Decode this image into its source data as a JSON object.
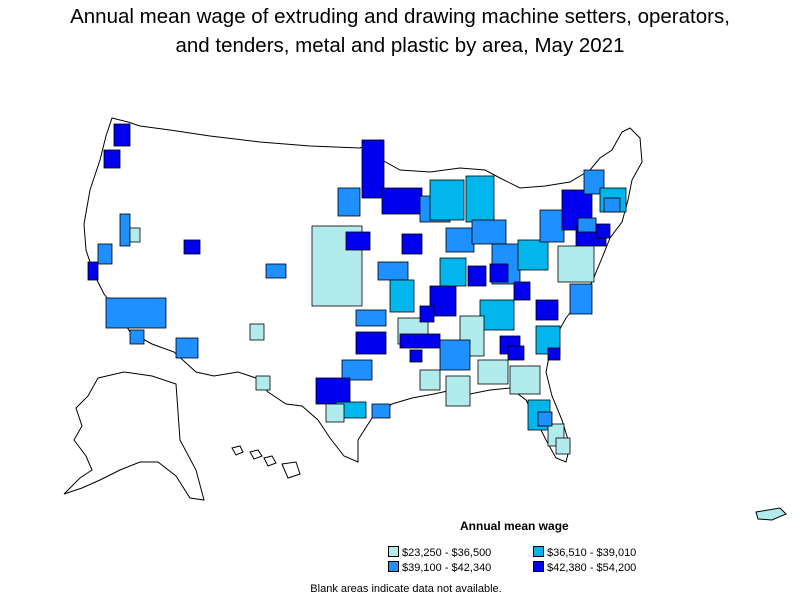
{
  "title_line1": "Annual mean wage of extruding and drawing machine setters, operators,",
  "title_line2": "and tenders, metal and plastic by area, May 2021",
  "legend": {
    "title": "Annual mean wage",
    "items": [
      {
        "label": "$23,250 - $36,500",
        "color": "#b2ebeb"
      },
      {
        "label": "$36,510 - $39,010",
        "color": "#00b6ea"
      },
      {
        "label": "$39,100 - $42,340",
        "color": "#1e90ff"
      },
      {
        "label": "$42,380 - $54,200",
        "color": "#0000ee"
      }
    ]
  },
  "note": "Blank areas indicate data not available."
}
